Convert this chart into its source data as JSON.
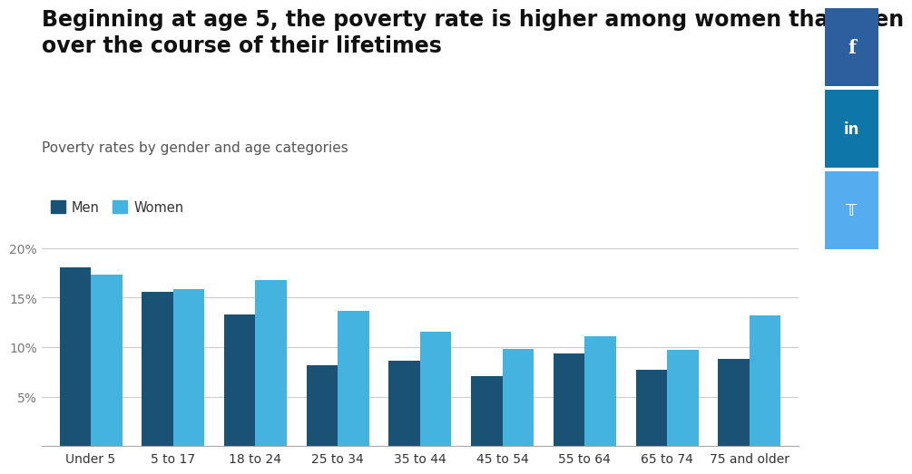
{
  "title_line1": "Beginning at age 5, the poverty rate is higher among women than men",
  "title_line2": "over the course of their lifetimes",
  "subtitle": "Poverty rates by gender and age categories",
  "categories": [
    "Under 5",
    "5 to 17",
    "18 to 24",
    "25 to 34",
    "35 to 44",
    "45 to 54",
    "55 to 64",
    "65 to 74",
    "75 and older"
  ],
  "men_values": [
    18.1,
    15.6,
    13.3,
    8.2,
    8.6,
    7.1,
    9.4,
    7.7,
    8.8
  ],
  "women_values": [
    17.3,
    15.9,
    16.8,
    13.7,
    11.6,
    9.8,
    11.1,
    9.7,
    13.2
  ],
  "men_color": "#1a5276",
  "women_color": "#45b3e0",
  "background_color": "#ffffff",
  "grid_color": "#cccccc",
  "ylim": [
    0,
    21
  ],
  "legend_men": "Men",
  "legend_women": "Women",
  "title_fontsize": 17,
  "subtitle_fontsize": 11,
  "tick_fontsize": 10,
  "bar_width": 0.38,
  "fb_color": "#2d5f9e",
  "li_color": "#0e76a8",
  "tw_color": "#55acee"
}
